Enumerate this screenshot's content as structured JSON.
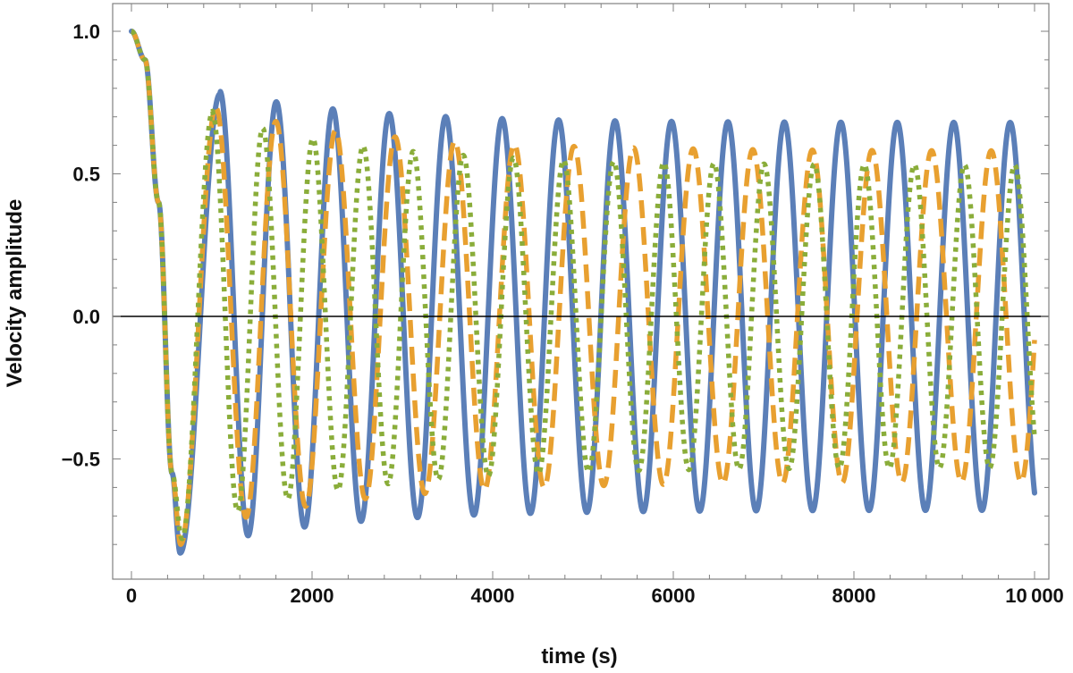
{
  "chart_data": {
    "type": "line",
    "title": "",
    "xlabel": "time (s)",
    "ylabel": "Velocity amplitude",
    "xlim": [
      0,
      10000
    ],
    "ylim": [
      -0.9,
      1.05
    ],
    "x_ticks": [
      0,
      2000,
      4000,
      6000,
      8000,
      10000
    ],
    "x_tick_labels": [
      "0",
      "2000",
      "4000",
      "6000",
      "8000",
      "10 000"
    ],
    "y_ticks": [
      -0.5,
      0.0,
      0.5,
      1.0
    ],
    "y_tick_labels": [
      "−0.5",
      "0.0",
      "0.5",
      "1.0"
    ],
    "zero_line": true,
    "colors": {
      "frame": "#808080",
      "zero_line": "#000000"
    },
    "series": [
      {
        "name": "solid",
        "style": "solid",
        "color": "#5b7fb8",
        "period": 625,
        "initial_amplitude": 0.79,
        "asymptotic_amplitude": 0.68,
        "decay_time": 1500,
        "start": [
          [
            0,
            1.0
          ],
          [
            150,
            0.9
          ],
          [
            300,
            0.4
          ],
          [
            450,
            -0.55
          ],
          [
            540,
            -0.83
          ]
        ],
        "first_max": [
          980,
          0.78
        ],
        "x_max": 10000
      },
      {
        "name": "dashed",
        "style": "dashed",
        "color": "#e8a030",
        "period": 660,
        "initial_amplitude": 0.73,
        "asymptotic_amplitude": 0.58,
        "decay_time": 1800,
        "start": [
          [
            0,
            1.0
          ],
          [
            150,
            0.9
          ],
          [
            300,
            0.4
          ],
          [
            450,
            -0.55
          ],
          [
            545,
            -0.8
          ]
        ],
        "first_max": [
          940,
          0.74
        ],
        "x_max": 10000
      },
      {
        "name": "dotted",
        "style": "dotted",
        "color": "#8aad3a",
        "period": 555,
        "initial_amplitude": 0.71,
        "asymptotic_amplitude": 0.53,
        "decay_time": 1700,
        "start": [
          [
            0,
            1.0
          ],
          [
            150,
            0.9
          ],
          [
            300,
            0.4
          ],
          [
            450,
            -0.55
          ],
          [
            560,
            -0.78
          ]
        ],
        "first_max": [
          900,
          0.72
        ],
        "x_max": 10000
      }
    ]
  }
}
